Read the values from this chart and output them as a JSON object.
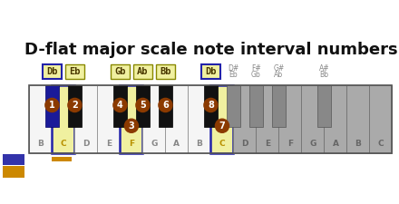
{
  "title": "D-flat major scale note interval numbers",
  "title_fontsize": 13,
  "white_keys": [
    "B",
    "C",
    "D",
    "E",
    "F",
    "G",
    "A",
    "B",
    "C",
    "D",
    "E",
    "F",
    "G",
    "A",
    "B",
    "C"
  ],
  "white_key_count": 16,
  "black_key_positions": [
    0.5,
    1.5,
    3.5,
    4.5,
    5.5,
    7.5,
    8.5,
    9.5,
    10.5,
    12.5
  ],
  "black_key_blue_indices": [
    0,
    6
  ],
  "black_key_grey_indices": [
    6,
    7,
    8,
    9
  ],
  "white_key_grey_indices": [
    9,
    10,
    11,
    12,
    13,
    14,
    15
  ],
  "highlighted_white_indices": [
    1,
    4,
    8
  ],
  "circle_color": "#8B3A00",
  "box_color_active": "#f0f0a0",
  "box_border_blue": "#2222aa",
  "box_border_yellow": "#888800",
  "grey_text_color": "#888888",
  "label_color_active": "#b89000",
  "orange_bar_color": "#cc8800",
  "sidebar_dark": "#1a1a2e",
  "bg_color": "#ffffff",
  "white_key_normal": "#f5f5f5",
  "white_key_grey": "#aaaaaa",
  "black_key_normal": "#111111",
  "black_key_blue": "#1a1a99",
  "black_key_grey": "#888888"
}
